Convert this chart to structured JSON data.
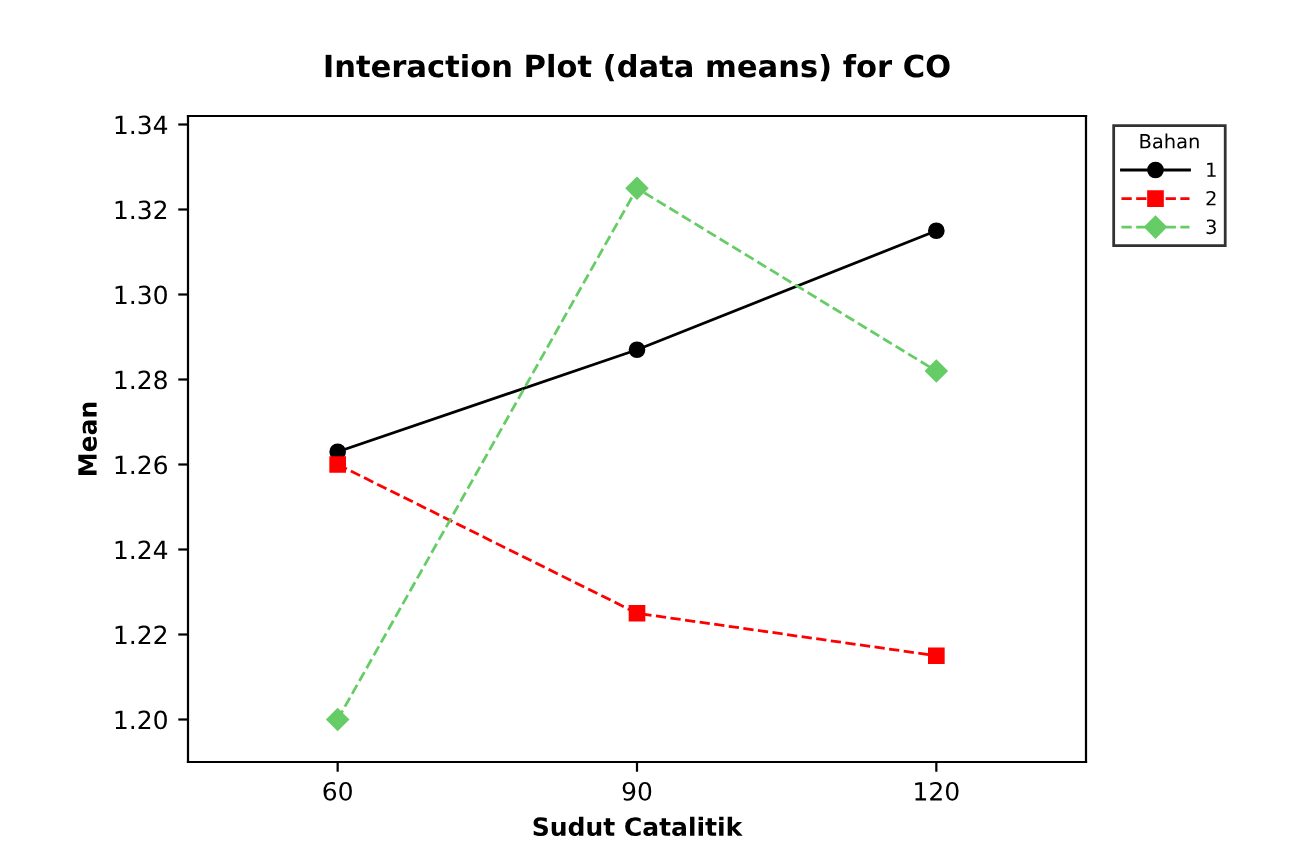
{
  "chart_data": {
    "type": "line",
    "title": "Interaction Plot (data means) for CO",
    "xlabel": "Sudut Catalitik",
    "ylabel": "Mean",
    "categories": [
      "60",
      "90",
      "120"
    ],
    "series": [
      {
        "name": "1",
        "color": "#000000",
        "values": [
          1.263,
          1.287,
          1.315
        ],
        "marker": "circle",
        "line_style": "solid"
      },
      {
        "name": "2",
        "color": "#ff0000",
        "values": [
          1.26,
          1.225,
          1.215
        ],
        "marker": "square",
        "line_style": "dashed"
      },
      {
        "name": "3",
        "color": "#66cc66",
        "values": [
          1.2,
          1.325,
          1.282
        ],
        "marker": "diamond",
        "line_style": "dashed"
      }
    ],
    "legend_title": "Bahan",
    "legend": "top right",
    "ylim": [
      1.19,
      1.342
    ],
    "yticks": [
      {
        "value": 1.2,
        "label": "1.20"
      },
      {
        "value": 1.22,
        "label": "1.22"
      },
      {
        "value": 1.24,
        "label": "1.24"
      },
      {
        "value": 1.26,
        "label": "1.26"
      },
      {
        "value": 1.28,
        "label": "1.28"
      },
      {
        "value": 1.3,
        "label": "1.30"
      },
      {
        "value": 1.32,
        "label": "1.32"
      },
      {
        "value": 1.34,
        "label": "1.34"
      }
    ],
    "grid": false
  }
}
